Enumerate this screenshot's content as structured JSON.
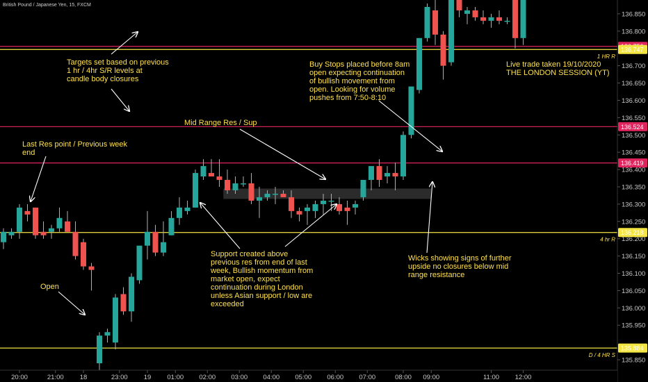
{
  "symbol": "British Pound / Japanese Yen, 15, FXCM",
  "colors": {
    "background": "#000000",
    "up_candle": "#26a69a",
    "down_candle": "#ef5350",
    "wick": "#b0b0b0",
    "resistance_line": "#e0245e",
    "support_line": "#f4e542",
    "annotation_text": "#ffe14d",
    "range_box": "#3a3a3a"
  },
  "chart_data": {
    "type": "candlestick",
    "timeframe": "15",
    "y_axis": {
      "side": "right",
      "ylim": [
        135.82,
        136.89
      ],
      "ticks": [
        135.85,
        135.9,
        135.95,
        136.0,
        136.05,
        136.1,
        136.15,
        136.2,
        136.25,
        136.3,
        136.35,
        136.4,
        136.45,
        136.5,
        136.55,
        136.6,
        136.65,
        136.7,
        136.75,
        136.8,
        136.85
      ]
    },
    "x_axis": {
      "ticks": [
        "20:00",
        "21:00",
        "18",
        "23:00",
        "19",
        "01:00",
        "02:00",
        "03:00",
        "04:00",
        "05:00",
        "06:00",
        "07:00",
        "08:00",
        "09:00",
        "11:00",
        "12:00"
      ],
      "tick_bar_index": [
        2,
        6.5,
        10,
        14.5,
        18,
        21.5,
        25.5,
        29.5,
        33.5,
        37.5,
        41.5,
        45.5,
        50,
        53.5,
        61,
        65
      ]
    },
    "candles": [
      {
        "o": 136.19,
        "h": 136.23,
        "l": 136.17,
        "c": 136.22
      },
      {
        "o": 136.21,
        "h": 136.23,
        "l": 136.2,
        "c": 136.22
      },
      {
        "o": 136.22,
        "h": 136.3,
        "l": 136.2,
        "c": 136.29
      },
      {
        "o": 136.28,
        "h": 136.3,
        "l": 136.25,
        "c": 136.27
      },
      {
        "o": 136.29,
        "h": 136.29,
        "l": 136.2,
        "c": 136.21
      },
      {
        "o": 136.22,
        "h": 136.25,
        "l": 136.2,
        "c": 136.21
      },
      {
        "o": 136.22,
        "h": 136.24,
        "l": 136.2,
        "c": 136.23
      },
      {
        "o": 136.23,
        "h": 136.29,
        "l": 136.22,
        "c": 136.26
      },
      {
        "o": 136.25,
        "h": 136.28,
        "l": 136.22,
        "c": 136.22
      },
      {
        "o": 136.22,
        "h": 136.25,
        "l": 136.14,
        "c": 136.15
      },
      {
        "o": 136.19,
        "h": 136.2,
        "l": 136.11,
        "c": 136.12
      },
      {
        "o": 136.12,
        "h": 136.13,
        "l": 136.05,
        "c": 136.11
      },
      {
        "o": 135.84,
        "h": 135.93,
        "l": 135.81,
        "c": 135.92
      },
      {
        "o": 135.92,
        "h": 135.94,
        "l": 135.9,
        "c": 135.93
      },
      {
        "o": 135.9,
        "h": 136.04,
        "l": 135.88,
        "c": 136.03
      },
      {
        "o": 136.04,
        "h": 136.06,
        "l": 135.98,
        "c": 135.99
      },
      {
        "o": 135.99,
        "h": 136.1,
        "l": 135.96,
        "c": 136.09
      },
      {
        "o": 136.08,
        "h": 136.17,
        "l": 136.07,
        "c": 136.18
      },
      {
        "o": 136.18,
        "h": 136.28,
        "l": 136.14,
        "c": 136.22
      },
      {
        "o": 136.22,
        "h": 136.24,
        "l": 136.15,
        "c": 136.16
      },
      {
        "o": 136.16,
        "h": 136.25,
        "l": 136.15,
        "c": 136.19
      },
      {
        "o": 136.21,
        "h": 136.28,
        "l": 136.21,
        "c": 136.26
      },
      {
        "o": 136.26,
        "h": 136.32,
        "l": 136.24,
        "c": 136.29
      },
      {
        "o": 136.28,
        "h": 136.31,
        "l": 136.27,
        "c": 136.29
      },
      {
        "o": 136.29,
        "h": 136.4,
        "l": 136.29,
        "c": 136.39
      },
      {
        "o": 136.38,
        "h": 136.43,
        "l": 136.37,
        "c": 136.41
      },
      {
        "o": 136.39,
        "h": 136.43,
        "l": 136.38,
        "c": 136.38
      },
      {
        "o": 136.38,
        "h": 136.43,
        "l": 136.35,
        "c": 136.37
      },
      {
        "o": 136.37,
        "h": 136.4,
        "l": 136.33,
        "c": 136.34
      },
      {
        "o": 136.34,
        "h": 136.38,
        "l": 136.33,
        "c": 136.36
      },
      {
        "o": 136.36,
        "h": 136.38,
        "l": 136.35,
        "c": 136.36
      },
      {
        "o": 136.36,
        "h": 136.39,
        "l": 136.3,
        "c": 136.31
      },
      {
        "o": 136.31,
        "h": 136.35,
        "l": 136.26,
        "c": 136.32
      },
      {
        "o": 136.32,
        "h": 136.34,
        "l": 136.31,
        "c": 136.33
      },
      {
        "o": 136.33,
        "h": 136.35,
        "l": 136.3,
        "c": 136.33
      },
      {
        "o": 136.33,
        "h": 136.34,
        "l": 136.32,
        "c": 136.32
      },
      {
        "o": 136.32,
        "h": 136.34,
        "l": 136.26,
        "c": 136.28
      },
      {
        "o": 136.28,
        "h": 136.29,
        "l": 136.25,
        "c": 136.27
      },
      {
        "o": 136.28,
        "h": 136.3,
        "l": 136.24,
        "c": 136.29
      },
      {
        "o": 136.28,
        "h": 136.31,
        "l": 136.26,
        "c": 136.3
      },
      {
        "o": 136.3,
        "h": 136.33,
        "l": 136.27,
        "c": 136.31
      },
      {
        "o": 136.31,
        "h": 136.33,
        "l": 136.28,
        "c": 136.31
      },
      {
        "o": 136.3,
        "h": 136.32,
        "l": 136.27,
        "c": 136.28
      },
      {
        "o": 136.29,
        "h": 136.31,
        "l": 136.24,
        "c": 136.28
      },
      {
        "o": 136.29,
        "h": 136.31,
        "l": 136.27,
        "c": 136.3
      },
      {
        "o": 136.32,
        "h": 136.37,
        "l": 136.31,
        "c": 136.37
      },
      {
        "o": 136.37,
        "h": 136.41,
        "l": 136.34,
        "c": 136.41
      },
      {
        "o": 136.41,
        "h": 136.43,
        "l": 136.35,
        "c": 136.37
      },
      {
        "o": 136.38,
        "h": 136.41,
        "l": 136.36,
        "c": 136.39
      },
      {
        "o": 136.39,
        "h": 136.42,
        "l": 136.34,
        "c": 136.38
      },
      {
        "o": 136.38,
        "h": 136.51,
        "l": 136.37,
        "c": 136.5
      },
      {
        "o": 136.5,
        "h": 136.64,
        "l": 136.49,
        "c": 136.64
      },
      {
        "o": 136.63,
        "h": 136.78,
        "l": 136.62,
        "c": 136.78
      },
      {
        "o": 136.78,
        "h": 136.88,
        "l": 136.77,
        "c": 136.87
      },
      {
        "o": 136.86,
        "h": 136.89,
        "l": 136.76,
        "c": 136.79
      },
      {
        "o": 136.79,
        "h": 136.8,
        "l": 136.66,
        "c": 136.7
      },
      {
        "o": 136.71,
        "h": 136.89,
        "l": 136.7,
        "c": 136.89
      },
      {
        "o": 136.89,
        "h": 136.9,
        "l": 136.84,
        "c": 136.86
      },
      {
        "o": 136.85,
        "h": 136.87,
        "l": 136.82,
        "c": 136.86
      },
      {
        "o": 136.86,
        "h": 136.87,
        "l": 136.83,
        "c": 136.84
      },
      {
        "o": 136.84,
        "h": 136.86,
        "l": 136.82,
        "c": 136.83
      },
      {
        "o": 136.83,
        "h": 136.85,
        "l": 136.81,
        "c": 136.84
      },
      {
        "o": 136.84,
        "h": 136.86,
        "l": 136.82,
        "c": 136.83
      },
      {
        "o": 136.83,
        "h": 136.84,
        "l": 136.82,
        "c": 136.83
      },
      {
        "o": 136.89,
        "h": 136.9,
        "l": 136.75,
        "c": 136.78
      },
      {
        "o": 136.78,
        "h": 136.9,
        "l": 136.76,
        "c": 136.89
      }
    ],
    "horizontal_levels": [
      {
        "price": 136.756,
        "label": "136.756",
        "color_key": "resistance_line",
        "side_tag": ""
      },
      {
        "price": 136.747,
        "label": "136.747",
        "color_key": "support_line",
        "side_tag": "1 HR R"
      },
      {
        "price": 136.524,
        "label": "136.524",
        "color_key": "resistance_line",
        "side_tag": ""
      },
      {
        "price": 136.419,
        "label": "136.419",
        "color_key": "resistance_line",
        "side_tag": ""
      },
      {
        "price": 136.218,
        "label": "136.218",
        "color_key": "support_line",
        "side_tag": "4 hr R"
      },
      {
        "price": 135.884,
        "label": "135.884",
        "color_key": "support_line",
        "side_tag": "D / 4 HR S"
      }
    ],
    "range_box": {
      "bar_start": 27.5,
      "bar_end": 53.5,
      "price_top": 136.345,
      "price_bottom": 136.315
    },
    "annotations": [
      {
        "id": "targets",
        "lines": [
          "Targets set based on previous",
          "1 hr / 4hr  S/R levels at",
          "candle body closures"
        ]
      },
      {
        "id": "buy-stops",
        "lines": [
          "Buy Stops placed before 8am",
          "open expecting continuation",
          "of bullish movement from",
          "open. Looking for volume",
          "pushes from 7:50-8:10"
        ]
      },
      {
        "id": "live-trade",
        "lines": [
          "Live trade taken 19/10/2020",
          "THE LONDON SESSION (YT)"
        ]
      },
      {
        "id": "mid-range",
        "lines": [
          "Mid Range Res / Sup"
        ]
      },
      {
        "id": "last-res",
        "lines": [
          "Last Res point / Previous week",
          "end"
        ]
      },
      {
        "id": "support-created",
        "lines": [
          "Support created above",
          "previous res from end of last",
          "week, Bullish momentum from",
          "market open, expect",
          "continuation during London",
          "unless Asian support / low are",
          "exceeded"
        ]
      },
      {
        "id": "wicks",
        "lines": [
          "Wicks showing signs of further",
          "upside no closures below mid",
          "range resistance"
        ]
      },
      {
        "id": "open",
        "lines": [
          "Open"
        ]
      }
    ]
  }
}
